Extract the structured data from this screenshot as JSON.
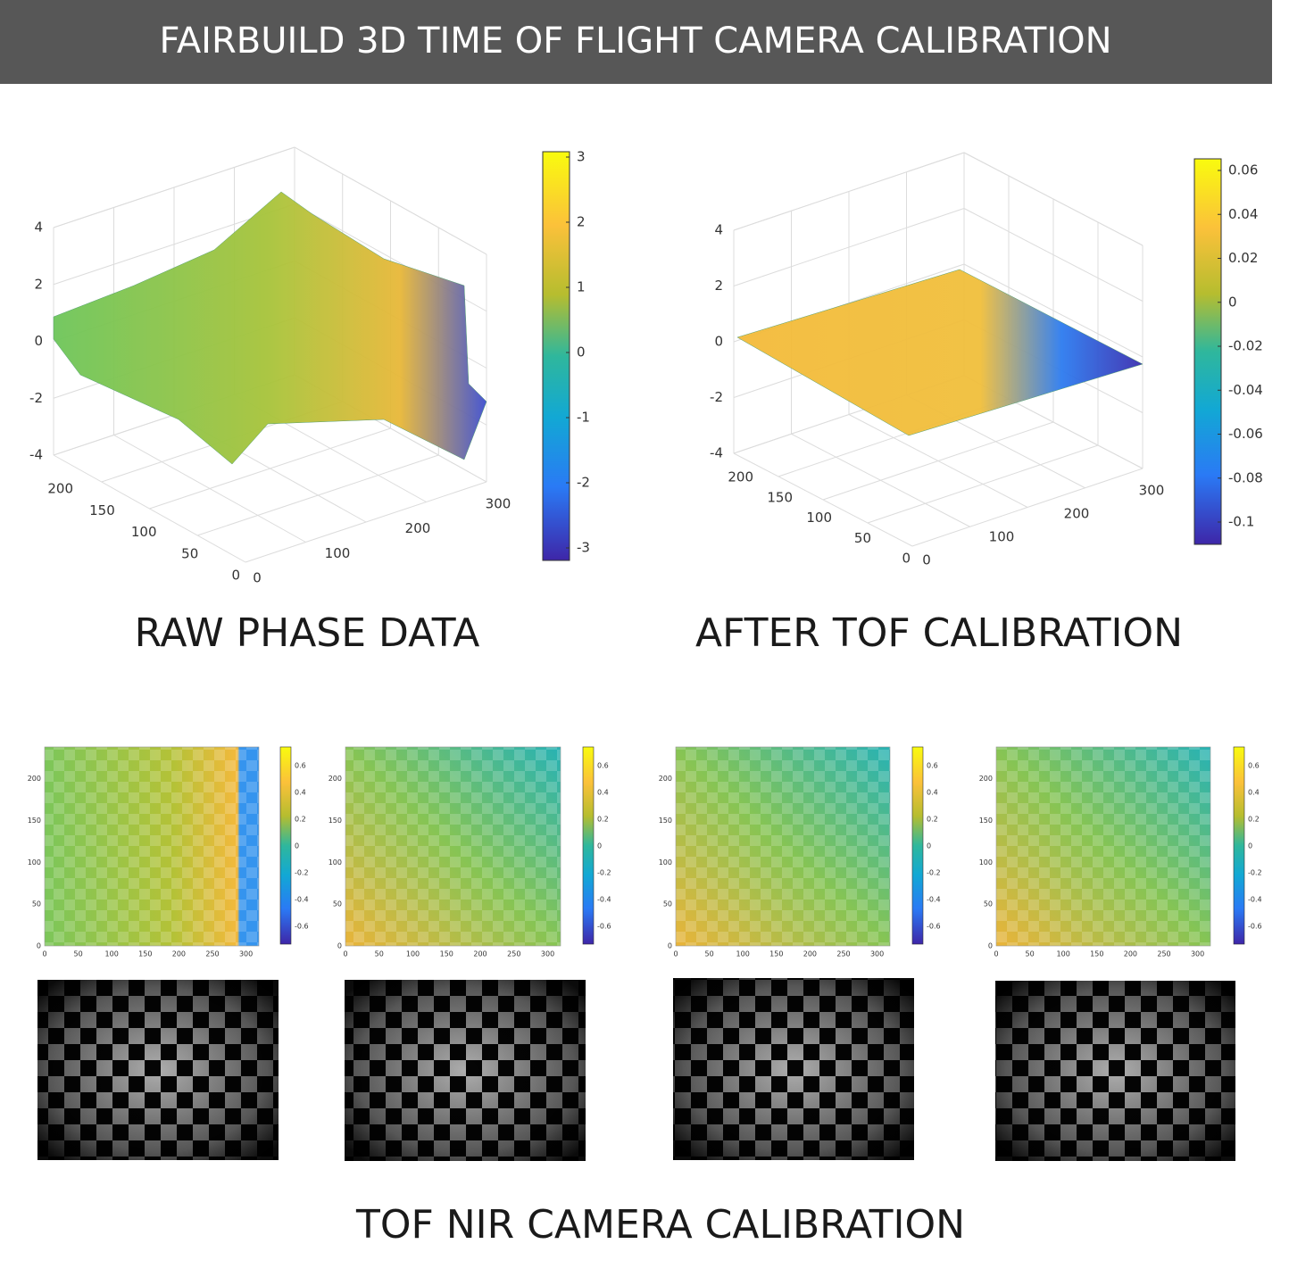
{
  "header": {
    "title": "FAIRBUILD 3D TIME OF FLIGHT CAMERA CALIBRATION"
  },
  "plots": [
    {
      "caption": "RAW PHASE DATA",
      "z_ticks": [
        4,
        2,
        0,
        -2,
        -4
      ],
      "y_ticks": [
        200,
        150,
        100,
        50,
        0
      ],
      "x_ticks": [
        0,
        100,
        200,
        300
      ],
      "colorbar_ticks": [
        3,
        2,
        1,
        0,
        -1,
        -2,
        -3
      ]
    },
    {
      "caption": "AFTER TOF CALIBRATION",
      "z_ticks": [
        4,
        2,
        0,
        -2,
        -4
      ],
      "y_ticks": [
        200,
        150,
        100,
        50,
        0
      ],
      "x_ticks": [
        0,
        100,
        200,
        300
      ],
      "colorbar_ticks": [
        0.06,
        0.04,
        0.02,
        0,
        -0.02,
        -0.04,
        -0.06,
        -0.08,
        -0.1
      ]
    }
  ],
  "heatmaps": {
    "x_ticks": [
      0,
      50,
      100,
      150,
      200,
      250,
      300
    ],
    "y_ticks": [
      0,
      50,
      100,
      150,
      200
    ],
    "colorbar_ticks": [
      0.6,
      0.4,
      0.2,
      0,
      -0.2,
      -0.4,
      -0.6
    ]
  },
  "footer": {
    "caption": "TOF NIR CAMERA CALIBRATION"
  }
}
